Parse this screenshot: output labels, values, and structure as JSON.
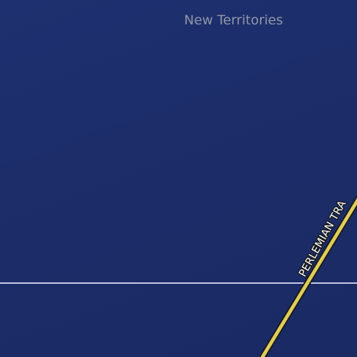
{
  "map": {
    "region_label": "New Territories",
    "road": {
      "name": "PERLEMIAN TRA",
      "fill_color": "#e0cc5a",
      "casing_color": "#1a1a1a"
    },
    "boundary_color": "#c9cde6",
    "background_color": "#1b2c67"
  }
}
